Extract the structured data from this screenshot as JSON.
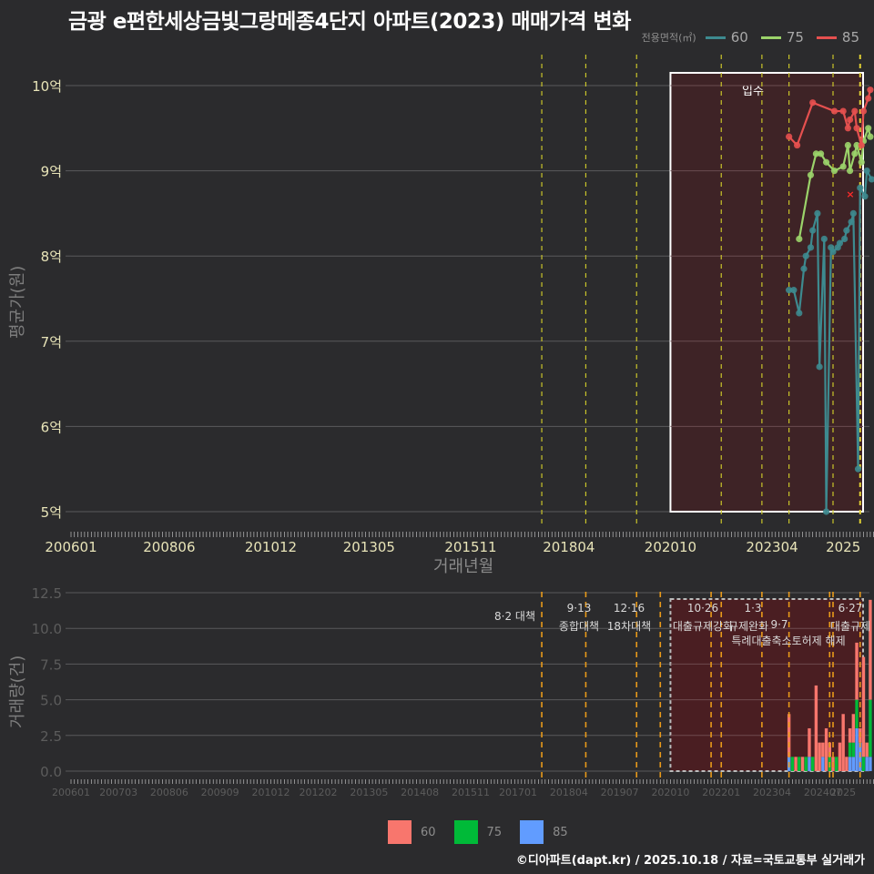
{
  "title": "금광 e편한세상금빛그랑메종4단지 아파트(2023) 매매가격 변화",
  "legend_top": {
    "title": "전용면적(㎡)",
    "items": [
      {
        "label": "60",
        "color": "#3d8a8f"
      },
      {
        "label": "75",
        "color": "#9bd36a"
      },
      {
        "label": "85",
        "color": "#e5504f"
      }
    ]
  },
  "price_chart": {
    "ylabel": "평균가(원)",
    "xlabel": "거래년월",
    "y_ticks": [
      "10억",
      "9억",
      "8억",
      "7억",
      "6억",
      "5억"
    ],
    "x_ticks": [
      "200601",
      "200806",
      "201012",
      "201305",
      "201511",
      "201804",
      "202010",
      "202304",
      "2025"
    ],
    "highlight_label": "입주"
  },
  "volume_chart": {
    "ylabel": "거래량(건)",
    "y_ticks": [
      "12.5",
      "10.0",
      "7.5",
      "5.0",
      "2.5",
      "0.0"
    ],
    "x_ticks": [
      "200601",
      "200703",
      "200806",
      "200909",
      "201012",
      "201202",
      "201305",
      "201408",
      "201511",
      "201701",
      "201804",
      "201907",
      "202010",
      "202201",
      "202304",
      "202407",
      "2025"
    ],
    "annotations": [
      {
        "date": "8·2 대책",
        "label": ""
      },
      {
        "date": "9·13",
        "label": "종합대책"
      },
      {
        "date": "12·16",
        "label": "18차대책"
      },
      {
        "date": "10·26",
        "label": "대출규제강화"
      },
      {
        "date": "1·3",
        "label": "규제완화"
      },
      {
        "date": "9·7",
        "label": "특례대출축소토허제 해제"
      },
      {
        "date": "6·27",
        "label": "대출규제"
      }
    ]
  },
  "legend_bottom": {
    "items": [
      {
        "label": "60",
        "color": "#f8766d"
      },
      {
        "label": "75",
        "color": "#00ba38"
      },
      {
        "label": "85",
        "color": "#619cff"
      }
    ]
  },
  "credit": "©디아파트(dapt.kr) / 2025.10.18 / 자료=국토교통부 실거래가",
  "chart_data": [
    {
      "type": "line",
      "title": "금광 e편한세상금빛그랑메종4단지 아파트(2023) 매매가격 변화",
      "xlabel": "거래년월",
      "ylabel": "평균가(원)",
      "ylim": [
        5.0,
        10.0
      ],
      "y_unit": "억",
      "x_ticks": [
        "200601",
        "200806",
        "201012",
        "201305",
        "201511",
        "201804",
        "202010",
        "202304",
        "2025"
      ],
      "grid": true,
      "legend_position": "top-right",
      "legend_title": "전용면적(㎡)",
      "series": [
        {
          "name": "60",
          "x": [
            "2023-09",
            "2023-10",
            "2023-12",
            "2024-01",
            "2024-02",
            "2024-03",
            "2024-04",
            "2024-05",
            "2024-06",
            "2024-07",
            "2024-08",
            "2024-09",
            "2024-10",
            "2024-11",
            "2024-12",
            "2025-01",
            "2025-02",
            "2025-03",
            "2025-04",
            "2025-05",
            "2025-06",
            "2025-07",
            "2025-08",
            "2025-09"
          ],
          "values": [
            7.6,
            7.6,
            7.33,
            7.85,
            8.0,
            8.1,
            8.3,
            8.5,
            6.7,
            8.2,
            5.0,
            8.1,
            8.05,
            8.1,
            8.15,
            8.2,
            8.3,
            8.4,
            8.5,
            5.5,
            8.8,
            8.7,
            9.0,
            8.9
          ]
        },
        {
          "name": "75",
          "x": [
            "2023-12",
            "2024-03",
            "2024-05",
            "2024-06",
            "2024-08",
            "2024-10",
            "2025-01",
            "2025-02",
            "2025-03",
            "2025-04",
            "2025-05",
            "2025-06",
            "2025-07",
            "2025-08",
            "2025-09"
          ],
          "values": [
            8.2,
            8.95,
            9.2,
            9.2,
            9.1,
            9.0,
            9.05,
            9.3,
            9.0,
            9.2,
            9.3,
            9.1,
            9.35,
            9.5,
            9.4
          ]
        },
        {
          "name": "85",
          "x": [
            "2023-09",
            "2023-11",
            "2024-04",
            "2024-10",
            "2025-01",
            "2025-02",
            "2025-03",
            "2025-04",
            "2025-05",
            "2025-06",
            "2025-07",
            "2025-08",
            "2025-09"
          ],
          "values": [
            9.4,
            9.3,
            9.8,
            9.7,
            9.7,
            9.5,
            9.6,
            9.7,
            9.5,
            9.3,
            9.7,
            9.85,
            9.95
          ]
        }
      ],
      "vlines": [
        "2017-08",
        "2018-09",
        "2019-12",
        "2022-01",
        "2023-01",
        "2023-09",
        "2024-10",
        "2025-06"
      ],
      "highlight_region": {
        "from": "2020-10",
        "to": "2025-10",
        "label": "입주"
      }
    },
    {
      "type": "bar",
      "title": "",
      "xlabel": "",
      "ylabel": "거래량(건)",
      "ylim": [
        0,
        12.5
      ],
      "stacked": true,
      "grid": true,
      "legend_position": "bottom",
      "x_ticks": [
        "200601",
        "200703",
        "200806",
        "200909",
        "201012",
        "201202",
        "201305",
        "201408",
        "201511",
        "201701",
        "201804",
        "201907",
        "202010",
        "202201",
        "202304",
        "202407",
        "2025"
      ],
      "categories": [
        "2023-09",
        "2023-10",
        "2023-11",
        "2023-12",
        "2024-01",
        "2024-02",
        "2024-03",
        "2024-04",
        "2024-05",
        "2024-06",
        "2024-07",
        "2024-08",
        "2024-09",
        "2024-10",
        "2024-11",
        "2024-12",
        "2025-01",
        "2025-02",
        "2025-03",
        "2025-04",
        "2025-05",
        "2025-06",
        "2025-07",
        "2025-08",
        "2025-09"
      ],
      "series": [
        {
          "name": "60",
          "values": [
            3,
            0,
            1,
            0,
            1,
            0,
            2,
            0,
            6,
            2,
            1,
            3,
            1,
            1,
            0,
            2,
            4,
            1,
            1,
            2,
            4,
            1,
            7,
            1,
            7
          ]
        },
        {
          "name": "75",
          "values": [
            0,
            1,
            0,
            1,
            0,
            1,
            0,
            1,
            0,
            0,
            0,
            0,
            1,
            0,
            1,
            0,
            0,
            0,
            1,
            1,
            2,
            0,
            1,
            0,
            4
          ]
        },
        {
          "name": "85",
          "values": [
            1,
            0,
            0,
            0,
            0,
            0,
            1,
            0,
            0,
            0,
            1,
            0,
            0,
            0,
            0,
            0,
            0,
            0,
            1,
            1,
            3,
            2,
            0,
            1,
            1
          ]
        }
      ],
      "vlines": [
        "2017-08",
        "2018-09",
        "2019-12",
        "2020-07",
        "2021-10",
        "2022-01",
        "2023-01",
        "2023-09",
        "2024-09",
        "2024-10",
        "2025-06"
      ],
      "highlight_region": {
        "from": "2020-10",
        "to": "2025-10"
      }
    }
  ]
}
